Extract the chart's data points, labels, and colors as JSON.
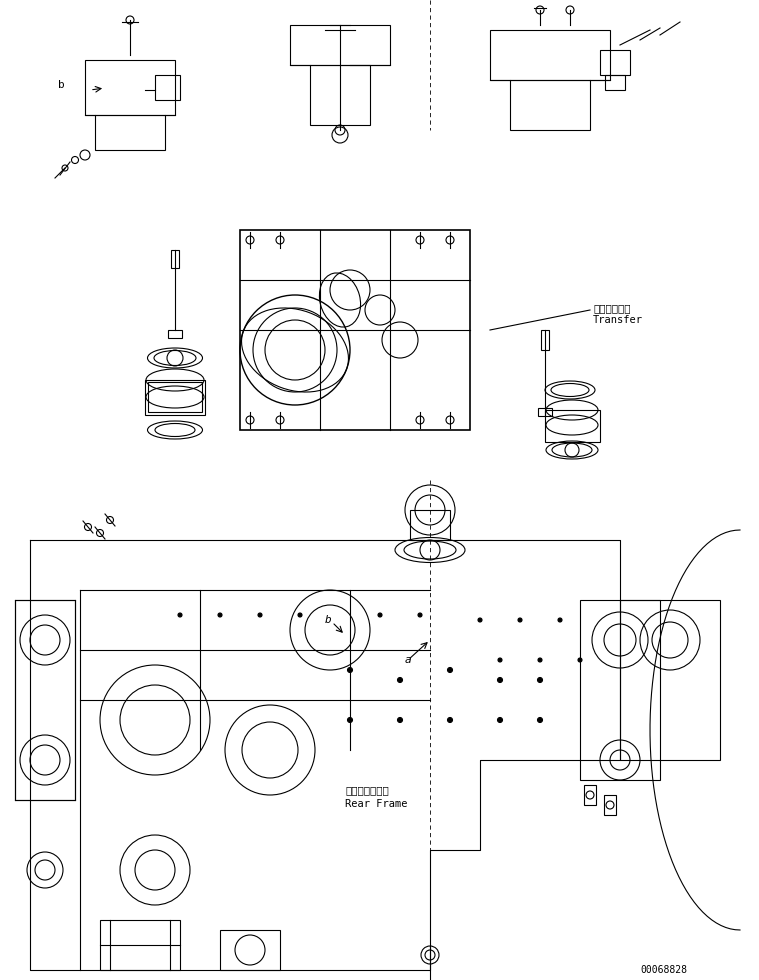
{
  "title": "",
  "background_color": "#ffffff",
  "line_color": "#000000",
  "text_color": "#000000",
  "label_transfer_jp": "トランスファ",
  "label_transfer_en": "Transfer",
  "label_rearframe_jp": "リヤーフレーム",
  "label_rearframe_en": "Rear Frame",
  "label_a": "a",
  "label_b": "b",
  "label_b2": "b",
  "part_number": "00068828",
  "fig_width": 7.59,
  "fig_height": 9.8,
  "dpi": 100
}
